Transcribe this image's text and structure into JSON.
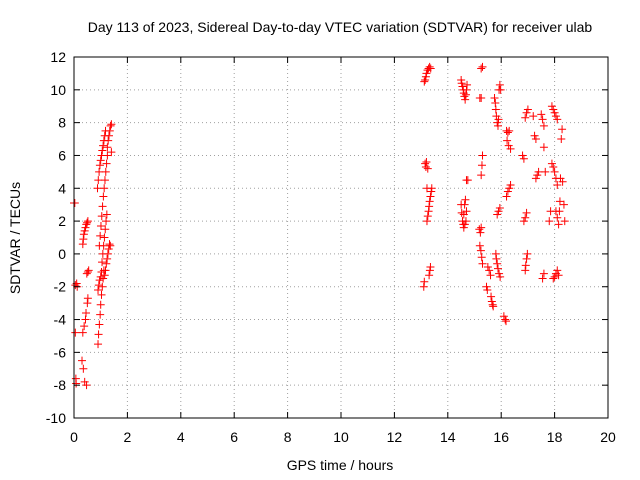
{
  "chart_data": {
    "type": "scatter",
    "title": "Day 113 of 2023, Sidereal Day-to-day VTEC variation (SDTVAR) for receiver ulab",
    "xlabel": "GPS time / hours",
    "ylabel": "SDTVAR / TECUs",
    "xlim": [
      0,
      20
    ],
    "ylim": [
      -10,
      12
    ],
    "xticks": [
      0,
      2,
      4,
      6,
      8,
      10,
      12,
      14,
      16,
      18,
      20
    ],
    "yticks": [
      -10,
      -8,
      -6,
      -4,
      -2,
      0,
      2,
      4,
      6,
      8,
      10,
      12
    ],
    "grid": true,
    "marker": "+",
    "color": "#ff0000",
    "series": [
      {
        "name": "SDTVAR",
        "points": [
          [
            0.0,
            3.1
          ],
          [
            0.03,
            3.1
          ],
          [
            0.05,
            -1.9
          ],
          [
            0.05,
            -4.8
          ],
          [
            0.07,
            -7.6
          ],
          [
            0.08,
            -7.9
          ],
          [
            0.1,
            -1.8
          ],
          [
            0.12,
            -2.0
          ],
          [
            0.3,
            -6.5
          ],
          [
            0.33,
            -4.8
          ],
          [
            0.35,
            -7.0
          ],
          [
            0.38,
            -4.4
          ],
          [
            0.4,
            -7.8
          ],
          [
            0.43,
            -4.0
          ],
          [
            0.45,
            -3.6
          ],
          [
            0.47,
            -8.0
          ],
          [
            0.5,
            -3.0
          ],
          [
            0.52,
            -2.7
          ],
          [
            0.48,
            -1.2
          ],
          [
            0.52,
            -1.1
          ],
          [
            0.55,
            -1.0
          ],
          [
            0.33,
            0.6
          ],
          [
            0.35,
            0.9
          ],
          [
            0.37,
            1.2
          ],
          [
            0.4,
            1.4
          ],
          [
            0.43,
            1.6
          ],
          [
            0.46,
            1.8
          ],
          [
            0.49,
            1.9
          ],
          [
            0.52,
            2.0
          ],
          [
            0.9,
            -5.5
          ],
          [
            0.92,
            -4.9
          ],
          [
            0.95,
            -4.3
          ],
          [
            0.98,
            -3.7
          ],
          [
            1.0,
            -3.1
          ],
          [
            1.03,
            -2.5
          ],
          [
            1.06,
            -2.0
          ],
          [
            1.09,
            -1.5
          ],
          [
            1.12,
            -1.0
          ],
          [
            0.9,
            -2.2
          ],
          [
            0.93,
            -1.9
          ],
          [
            0.96,
            -1.6
          ],
          [
            1.0,
            -1.4
          ],
          [
            1.03,
            -1.1
          ],
          [
            0.88,
            4.0
          ],
          [
            0.91,
            4.5
          ],
          [
            0.94,
            5.0
          ],
          [
            0.97,
            5.4
          ],
          [
            1.0,
            5.7
          ],
          [
            1.03,
            6.0
          ],
          [
            1.06,
            6.3
          ],
          [
            1.09,
            6.6
          ],
          [
            1.12,
            6.9
          ],
          [
            1.15,
            7.2
          ],
          [
            1.18,
            7.5
          ],
          [
            0.95,
            0.5
          ],
          [
            0.98,
            1.1
          ],
          [
            1.01,
            1.7
          ],
          [
            1.04,
            2.3
          ],
          [
            1.07,
            2.9
          ],
          [
            1.1,
            3.5
          ],
          [
            1.13,
            4.0
          ],
          [
            1.16,
            4.5
          ],
          [
            1.19,
            5.0
          ],
          [
            1.22,
            5.5
          ],
          [
            1.25,
            6.0
          ],
          [
            1.05,
            -0.5
          ],
          [
            1.08,
            0.0
          ],
          [
            1.11,
            0.5
          ],
          [
            1.14,
            1.0
          ],
          [
            1.17,
            1.5
          ],
          [
            1.2,
            2.0
          ],
          [
            1.23,
            2.4
          ],
          [
            1.15,
            -1.3
          ],
          [
            1.18,
            -1.0
          ],
          [
            1.21,
            -0.6
          ],
          [
            1.24,
            -0.3
          ],
          [
            1.27,
            0.0
          ],
          [
            1.3,
            0.3
          ],
          [
            1.33,
            0.6
          ],
          [
            1.36,
            0.5
          ],
          [
            1.25,
            6.5
          ],
          [
            1.28,
            6.9
          ],
          [
            1.31,
            7.2
          ],
          [
            1.34,
            7.5
          ],
          [
            1.37,
            7.8
          ],
          [
            1.4,
            7.9
          ],
          [
            1.4,
            6.2
          ],
          [
            13.1,
            -2.0
          ],
          [
            13.12,
            -1.7
          ],
          [
            13.15,
            5.5
          ],
          [
            13.18,
            5.3
          ],
          [
            13.2,
            5.6
          ],
          [
            13.22,
            4.0
          ],
          [
            13.25,
            5.2
          ],
          [
            13.12,
            10.5
          ],
          [
            13.15,
            10.6
          ],
          [
            13.18,
            10.8
          ],
          [
            13.2,
            11.0
          ],
          [
            13.24,
            11.2
          ],
          [
            13.28,
            11.3
          ],
          [
            13.32,
            11.4
          ],
          [
            13.36,
            11.3
          ],
          [
            13.22,
            2.0
          ],
          [
            13.25,
            2.3
          ],
          [
            13.28,
            2.6
          ],
          [
            13.3,
            2.9
          ],
          [
            13.32,
            3.2
          ],
          [
            13.35,
            3.5
          ],
          [
            13.38,
            3.8
          ],
          [
            13.4,
            4.0
          ],
          [
            13.3,
            -1.3
          ],
          [
            13.33,
            -1.0
          ],
          [
            13.35,
            -0.8
          ],
          [
            14.5,
            10.6
          ],
          [
            14.52,
            10.4
          ],
          [
            14.55,
            10.2
          ],
          [
            14.58,
            10.0
          ],
          [
            14.6,
            9.8
          ],
          [
            14.62,
            9.6
          ],
          [
            14.65,
            9.4
          ],
          [
            14.68,
            9.7
          ],
          [
            14.7,
            10.0
          ],
          [
            14.72,
            10.3
          ],
          [
            14.5,
            3.0
          ],
          [
            14.52,
            2.5
          ],
          [
            14.55,
            2.0
          ],
          [
            14.58,
            1.8
          ],
          [
            14.6,
            2.4
          ],
          [
            14.63,
            3.0
          ],
          [
            14.66,
            3.3
          ],
          [
            14.7,
            4.5
          ],
          [
            14.75,
            4.5
          ],
          [
            14.6,
            1.6
          ],
          [
            14.64,
            1.8
          ],
          [
            14.68,
            2.0
          ],
          [
            14.7,
            2.6
          ],
          [
            15.2,
            9.5
          ],
          [
            15.25,
            9.5
          ],
          [
            15.18,
            1.5
          ],
          [
            15.22,
            1.3
          ],
          [
            15.25,
            1.6
          ],
          [
            15.2,
            0.5
          ],
          [
            15.24,
            0.2
          ],
          [
            15.27,
            -0.2
          ],
          [
            15.3,
            -0.6
          ],
          [
            15.25,
            4.8
          ],
          [
            15.28,
            5.4
          ],
          [
            15.3,
            6.0
          ],
          [
            15.25,
            11.3
          ],
          [
            15.3,
            11.4
          ],
          [
            15.45,
            -2.0
          ],
          [
            15.48,
            -2.2
          ],
          [
            15.5,
            -0.8
          ],
          [
            15.55,
            -1.0
          ],
          [
            15.6,
            -1.3
          ],
          [
            15.62,
            -2.6
          ],
          [
            15.65,
            -2.9
          ],
          [
            15.68,
            -3.1
          ],
          [
            15.7,
            -3.2
          ],
          [
            15.75,
            9.5
          ],
          [
            15.78,
            9.2
          ],
          [
            15.8,
            8.8
          ],
          [
            15.82,
            8.4
          ],
          [
            15.85,
            8.0
          ],
          [
            15.88,
            7.8
          ],
          [
            15.9,
            8.2
          ],
          [
            15.92,
            10.0
          ],
          [
            15.95,
            10.3
          ],
          [
            15.98,
            10.0
          ],
          [
            15.85,
            2.4
          ],
          [
            15.9,
            2.6
          ],
          [
            15.95,
            2.8
          ],
          [
            15.8,
            0.0
          ],
          [
            15.82,
            -0.3
          ],
          [
            15.85,
            -0.6
          ],
          [
            15.88,
            -0.9
          ],
          [
            15.92,
            -1.2
          ],
          [
            15.96,
            -1.4
          ],
          [
            16.1,
            -3.8
          ],
          [
            16.15,
            -4.0
          ],
          [
            16.18,
            -4.1
          ],
          [
            16.2,
            7.5
          ],
          [
            16.25,
            7.4
          ],
          [
            16.3,
            7.5
          ],
          [
            16.2,
            3.5
          ],
          [
            16.25,
            3.8
          ],
          [
            16.3,
            4.0
          ],
          [
            16.35,
            4.2
          ],
          [
            16.22,
            6.9
          ],
          [
            16.28,
            6.6
          ],
          [
            16.35,
            6.4
          ],
          [
            16.8,
            6.0
          ],
          [
            16.85,
            5.8
          ],
          [
            16.9,
            -1.0
          ],
          [
            16.92,
            -0.7
          ],
          [
            16.95,
            -0.3
          ],
          [
            16.98,
            0.0
          ],
          [
            16.85,
            2.0
          ],
          [
            16.9,
            2.2
          ],
          [
            16.95,
            2.5
          ],
          [
            16.9,
            8.3
          ],
          [
            16.95,
            8.6
          ],
          [
            17.0,
            8.8
          ],
          [
            17.2,
            8.4
          ],
          [
            17.25,
            7.2
          ],
          [
            17.3,
            7.0
          ],
          [
            17.3,
            4.6
          ],
          [
            17.35,
            4.8
          ],
          [
            17.4,
            5.0
          ],
          [
            17.5,
            8.5
          ],
          [
            17.55,
            8.2
          ],
          [
            17.6,
            7.8
          ],
          [
            17.65,
            5.0
          ],
          [
            17.6,
            6.5
          ],
          [
            17.55,
            -1.5
          ],
          [
            17.6,
            -1.2
          ],
          [
            17.8,
            2.0
          ],
          [
            17.85,
            2.6
          ],
          [
            17.9,
            5.5
          ],
          [
            17.95,
            5.3
          ],
          [
            18.0,
            5.0
          ],
          [
            18.05,
            4.6
          ],
          [
            18.1,
            4.2
          ],
          [
            17.9,
            9.0
          ],
          [
            17.95,
            8.8
          ],
          [
            18.0,
            8.6
          ],
          [
            18.05,
            8.4
          ],
          [
            18.1,
            8.2
          ],
          [
            17.95,
            -1.5
          ],
          [
            18.0,
            -1.4
          ],
          [
            18.05,
            -1.2
          ],
          [
            18.1,
            -1.0
          ],
          [
            18.15,
            -1.3
          ],
          [
            18.05,
            2.6
          ],
          [
            18.1,
            2.2
          ],
          [
            18.15,
            1.8
          ],
          [
            18.18,
            2.6
          ],
          [
            18.2,
            3.2
          ],
          [
            18.22,
            4.6
          ],
          [
            18.25,
            7.0
          ],
          [
            18.28,
            7.6
          ],
          [
            18.3,
            4.4
          ],
          [
            18.35,
            3.0
          ],
          [
            18.38,
            2.0
          ]
        ]
      }
    ]
  }
}
